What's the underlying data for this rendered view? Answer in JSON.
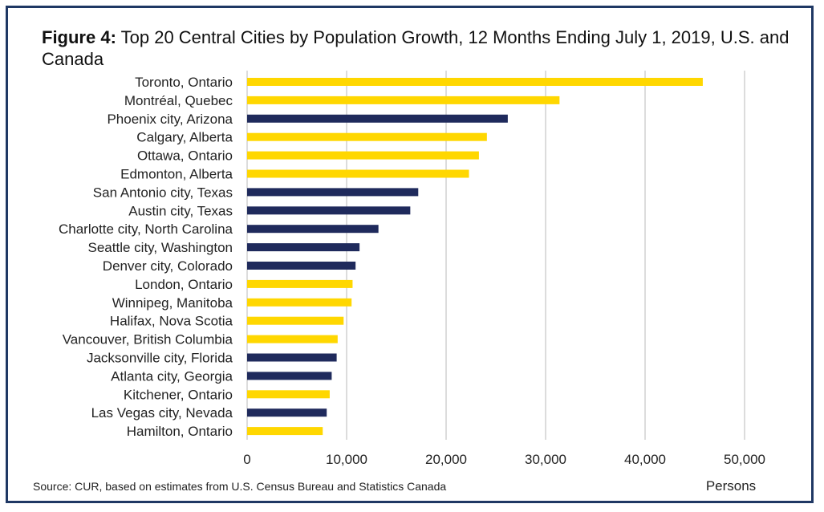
{
  "figure": {
    "label": "Figure 4:",
    "title": "Top 20 Central Cities by Population Growth, 12 Months Ending July 1, 2019, U.S. and Canada",
    "source": "Source: CUR, based on estimates from U.S. Census Bureau and Statistics Canada"
  },
  "colors": {
    "canada": "#ffd700",
    "us": "#1f2a5c",
    "grid": "#d0d0d0",
    "border": "#1f3864"
  },
  "chart_data": {
    "type": "bar",
    "orientation": "horizontal",
    "title": "Figure 4: Top 20 Central Cities by Population Growth, 12 Months Ending July 1, 2019, U.S. and Canada",
    "xlabel": "Persons",
    "ylabel": "",
    "xlim": [
      0,
      50000
    ],
    "xticks": [
      0,
      10000,
      20000,
      30000,
      40000,
      50000
    ],
    "xtick_labels": [
      "0",
      "10,000",
      "20,000",
      "30,000",
      "40,000",
      "50,000"
    ],
    "grid": true,
    "legend": "none",
    "categories": [
      "Toronto, Ontario",
      "Montréal, Quebec",
      "Phoenix city, Arizona",
      "Calgary, Alberta",
      "Ottawa, Ontario",
      "Edmonton, Alberta",
      "San Antonio city, Texas",
      "Austin city, Texas",
      "Charlotte city, North Carolina",
      "Seattle city, Washington",
      "Denver city, Colorado",
      "London, Ontario",
      "Winnipeg, Manitoba",
      "Halifax, Nova Scotia",
      "Vancouver, British Columbia",
      "Jacksonville city, Florida",
      "Atlanta city, Georgia",
      "Kitchener, Ontario",
      "Las Vegas city, Nevada",
      "Hamilton, Ontario"
    ],
    "values": [
      45800,
      31400,
      26200,
      24100,
      23300,
      22300,
      17200,
      16400,
      13200,
      11300,
      10900,
      10600,
      10500,
      9700,
      9100,
      9000,
      8500,
      8300,
      8000,
      7600
    ],
    "country": [
      "canada",
      "canada",
      "us",
      "canada",
      "canada",
      "canada",
      "us",
      "us",
      "us",
      "us",
      "us",
      "canada",
      "canada",
      "canada",
      "canada",
      "us",
      "us",
      "canada",
      "us",
      "canada"
    ]
  }
}
